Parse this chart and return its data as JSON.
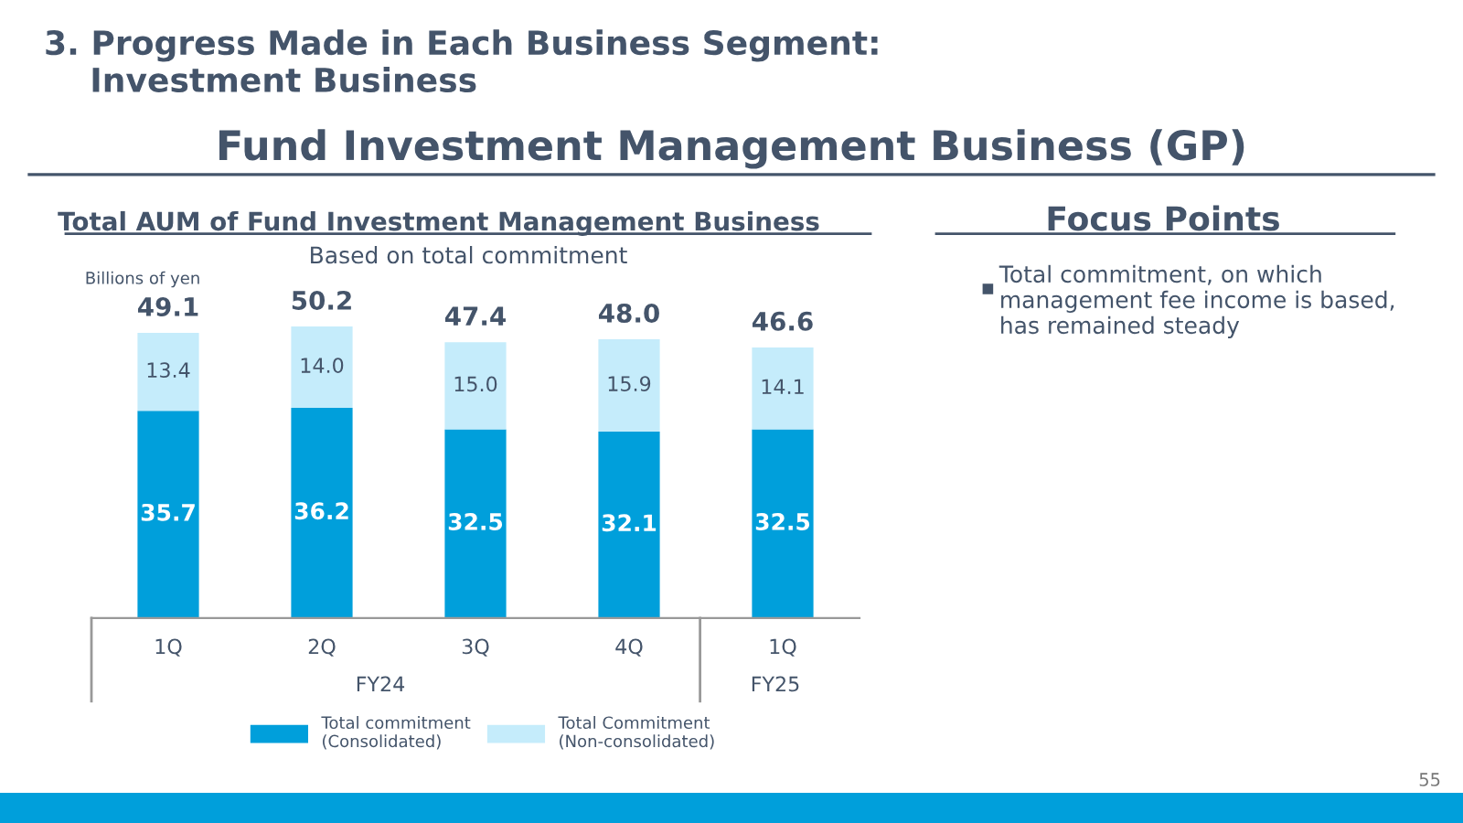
{
  "chart_data": {
    "type": "bar",
    "stacked": true,
    "title": "Total AUM of Fund Investment Management Business",
    "subtitle": "Based on total commitment",
    "ylabel": "Billions of yen",
    "categories": [
      "1Q",
      "2Q",
      "3Q",
      "4Q",
      "1Q"
    ],
    "series": [
      {
        "name": "Total commitment\n(Consolidated)",
        "color": "#009fdb",
        "values": [
          35.7,
          36.2,
          32.5,
          32.1,
          32.5
        ],
        "value_labels": [
          "35.7",
          "36.2",
          "32.5",
          "32.1",
          "32.5"
        ]
      },
      {
        "name": "Total Commitment\n(Non-consolidated)",
        "color": "#c5ecfb",
        "values": [
          13.4,
          14.0,
          15.0,
          15.9,
          14.1
        ],
        "value_labels": [
          "13.4",
          "14.0",
          "15.0",
          "15.9",
          "14.1"
        ]
      }
    ],
    "totals": [
      "49.1",
      "50.2",
      "47.4",
      "48.0",
      "46.6"
    ],
    "legend": "bottom",
    "grid": false,
    "annotations": [
      "3. Progress Made in Each Business Segment:\n    Investment Business",
      "Fund Investment Management Business (GP)",
      "Focus Points",
      "Total commitment, on which\nmanagement fee income is based,\nhas remained steady",
      "FY24",
      "FY25",
      "55"
    ]
  }
}
